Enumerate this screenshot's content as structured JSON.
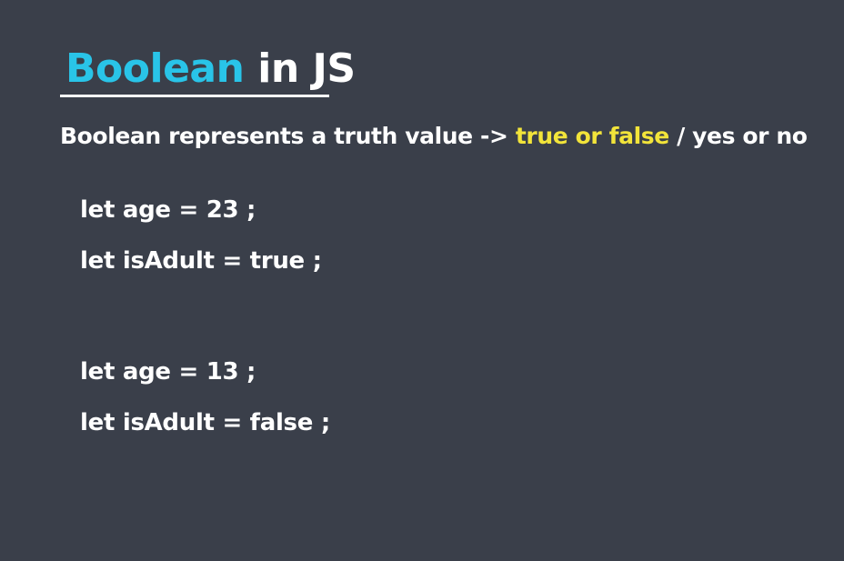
{
  "title": {
    "accent": "Boolean",
    "rest": "in JS",
    "accent_color": "#29c4e8"
  },
  "subtitle": {
    "prefix": "Boolean represents a truth value ->",
    "highlight": "true or false",
    "suffix": "/ yes or no",
    "highlight_color": "#f2e43a"
  },
  "code_examples": [
    {
      "text": "let age = 23 ;"
    },
    {
      "text": "let isAdult = true ;"
    },
    {
      "text": "let age = 13 ;"
    },
    {
      "text": "let isAdult = false ;"
    }
  ],
  "colors": {
    "background": "#3a3f4a",
    "text": "#ffffff"
  }
}
